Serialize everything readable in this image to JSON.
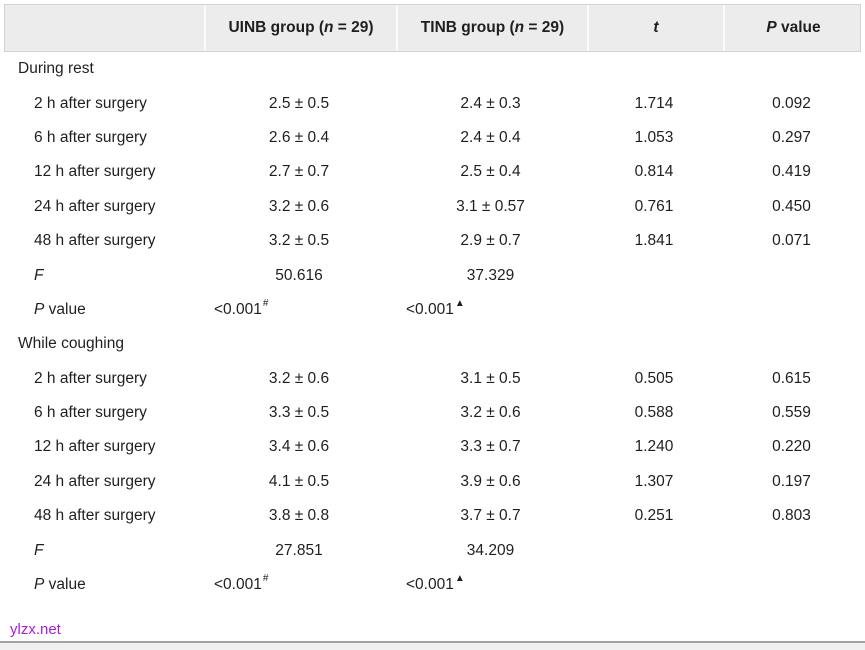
{
  "table": {
    "header": {
      "empty": "",
      "uinb": {
        "pre": "UINB group (",
        "n": "n",
        "post": " = 29)"
      },
      "tinb": {
        "pre": "TINB group (",
        "n": "n",
        "post": " = 29)"
      },
      "t": "t",
      "p": {
        "italic": "P",
        "rest": " value"
      },
      "bg_color": "#ececec",
      "border_color": "#d3d3d3",
      "separator_color": "#fbfbfb"
    },
    "sections": [
      {
        "title": "During rest",
        "rows": [
          {
            "label": "2 h after surgery",
            "uinb": "2.5 ± 0.5",
            "tinb": "2.4 ± 0.3",
            "t": "1.714",
            "p": "0.092"
          },
          {
            "label": "6 h after surgery",
            "uinb": "2.6 ± 0.4",
            "tinb": "2.4 ± 0.4",
            "t": "1.053",
            "p": "0.297"
          },
          {
            "label": "12 h after surgery",
            "uinb": "2.7 ± 0.7",
            "tinb": "2.5 ± 0.4",
            "t": "0.814",
            "p": "0.419"
          },
          {
            "label": "24 h after surgery",
            "uinb": "3.2 ± 0.6",
            "tinb": "3.1 ± 0.57",
            "t": "0.761",
            "p": "0.450"
          },
          {
            "label": "48 h after surgery",
            "uinb": "3.2 ± 0.5",
            "tinb": "2.9 ± 0.7",
            "t": "1.841",
            "p": "0.071"
          }
        ],
        "f_row": {
          "label": "F",
          "uinb": "50.616",
          "tinb": "37.329"
        },
        "p_row": {
          "label_italic": "P",
          "label_rest": " value",
          "uinb": "<0.001",
          "uinb_sup": "#",
          "tinb": "<0.001",
          "tinb_sup": "▲"
        }
      },
      {
        "title": "While coughing",
        "rows": [
          {
            "label": "2 h after surgery",
            "uinb": "3.2 ± 0.6",
            "tinb": "3.1 ± 0.5",
            "t": "0.505",
            "p": "0.615"
          },
          {
            "label": "6 h after surgery",
            "uinb": "3.3 ± 0.5",
            "tinb": "3.2 ± 0.6",
            "t": "0.588",
            "p": "0.559"
          },
          {
            "label": "12 h after surgery",
            "uinb": "3.4 ± 0.6",
            "tinb": "3.3 ± 0.7",
            "t": "1.240",
            "p": "0.220"
          },
          {
            "label": "24 h after surgery",
            "uinb": "4.1 ± 0.5",
            "tinb": "3.9 ± 0.6",
            "t": "1.307",
            "p": "0.197"
          },
          {
            "label": "48 h after surgery",
            "uinb": "3.8 ± 0.8",
            "tinb": "3.7 ± 0.7",
            "t": "0.251",
            "p": "0.803"
          }
        ],
        "f_row": {
          "label": "F",
          "uinb": "27.851",
          "tinb": "34.209"
        },
        "p_row": {
          "label_italic": "P",
          "label_rest": " value",
          "uinb": "<0.001",
          "uinb_sup": "#",
          "tinb": "<0.001",
          "tinb_sup": "▲"
        }
      }
    ]
  },
  "footer": {
    "link": "ylzx.net",
    "link_color": "#a81fd6"
  }
}
